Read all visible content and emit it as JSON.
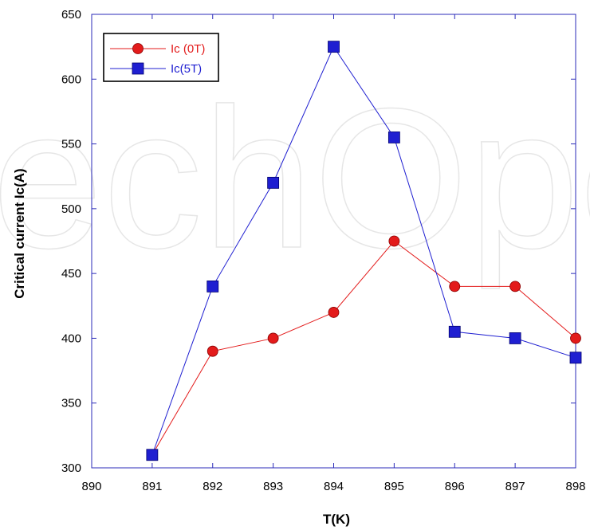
{
  "chart_data": {
    "type": "line",
    "title": "",
    "xlabel": "T(K)",
    "ylabel": "Critical current Ic(A)",
    "xlim": [
      890,
      898
    ],
    "ylim": [
      300,
      650
    ],
    "xticks": [
      890,
      891,
      892,
      893,
      894,
      895,
      896,
      897,
      898
    ],
    "yticks": [
      300,
      350,
      400,
      450,
      500,
      550,
      600,
      650
    ],
    "grid": false,
    "legend_position": "top-left",
    "series": [
      {
        "name": "Ic (0T)",
        "color": "#e31b1b",
        "marker": "circle",
        "x": [
          891,
          892,
          893,
          894,
          895,
          896,
          897,
          898
        ],
        "y": [
          310,
          390,
          400,
          420,
          475,
          440,
          440,
          400
        ]
      },
      {
        "name": "Ic(5T)",
        "color": "#1f1fd1",
        "marker": "square",
        "x": [
          891,
          892,
          893,
          894,
          895,
          896,
          897,
          898
        ],
        "y": [
          310,
          440,
          520,
          625,
          555,
          405,
          400,
          385
        ]
      }
    ]
  },
  "watermark": {
    "text": "echOpe"
  }
}
